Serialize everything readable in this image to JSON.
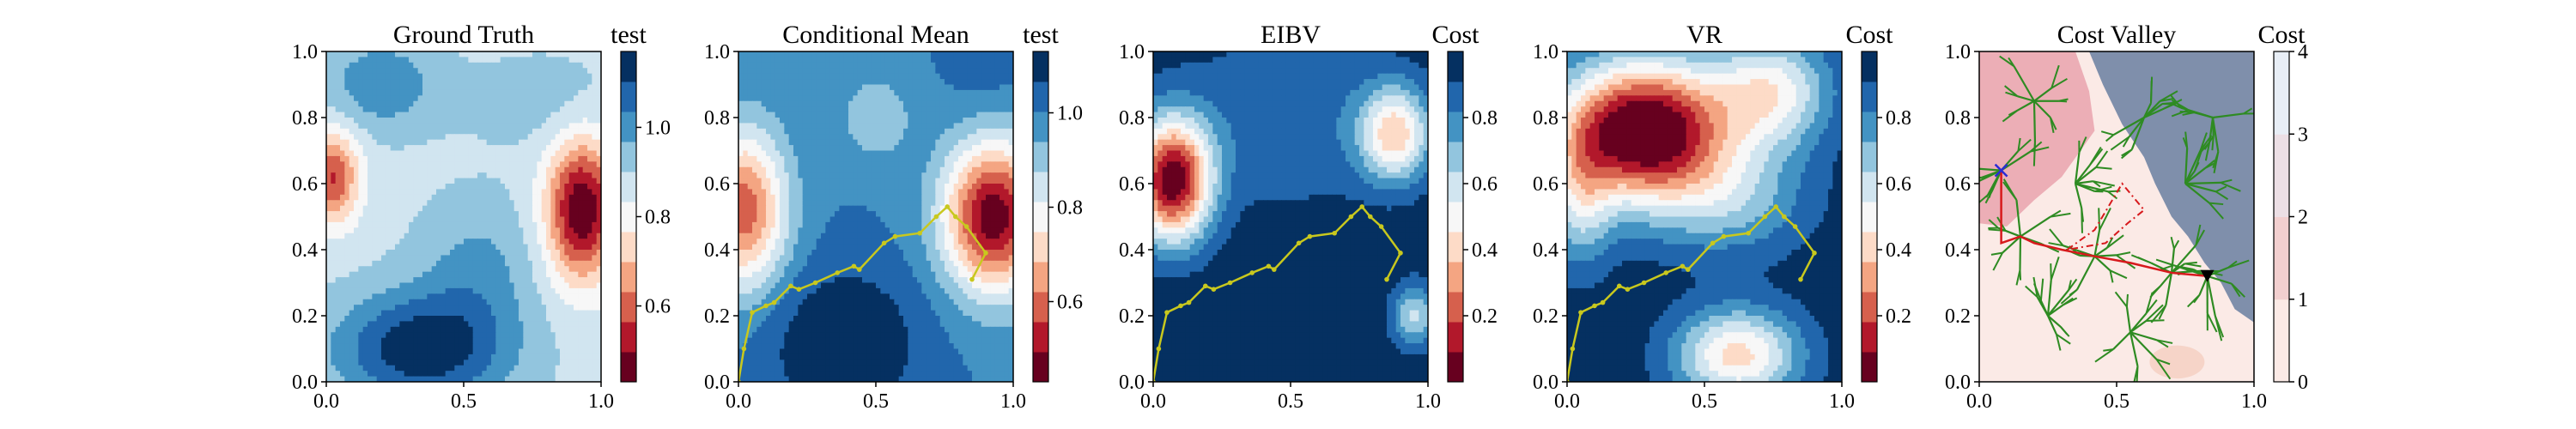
{
  "chart_data": [
    {
      "type": "heatmap",
      "title": "Ground Truth",
      "colorbar_label": "test",
      "xlim": [
        0.0,
        1.0
      ],
      "ylim": [
        0.0,
        1.0
      ],
      "xticks": [
        "0.0",
        "0.5",
        "1.0"
      ],
      "yticks": [
        "0.0",
        "0.2",
        "0.4",
        "0.6",
        "0.8",
        "1.0"
      ],
      "colorbar_range": [
        0.43,
        1.17
      ],
      "colorbar_ticks": [
        "0.6",
        "0.8",
        "1.0"
      ],
      "colorbar_tick_values": [
        0.6,
        0.8,
        1.0
      ],
      "colormap": [
        "#67001f",
        "#b2182b",
        "#d6604d",
        "#f4a582",
        "#fddbc7",
        "#f7f7f7",
        "#d1e5f0",
        "#92c5de",
        "#4393c3",
        "#2166ac",
        "#053061"
      ],
      "field": {
        "base": 0.88,
        "blobs": [
          {
            "x": 0.93,
            "y": 0.52,
            "sx": 0.09,
            "sy": 0.15,
            "amp": -0.45
          },
          {
            "x": 0.02,
            "y": 0.62,
            "sx": 0.07,
            "sy": 0.1,
            "amp": -0.32
          },
          {
            "x": 0.35,
            "y": 0.1,
            "sx": 0.22,
            "sy": 0.12,
            "amp": 0.28
          },
          {
            "x": 0.2,
            "y": 0.9,
            "sx": 0.15,
            "sy": 0.1,
            "amp": 0.14
          },
          {
            "x": 0.55,
            "y": 0.35,
            "sx": 0.15,
            "sy": 0.15,
            "amp": 0.1
          },
          {
            "x": 0.8,
            "y": 0.85,
            "sx": 0.2,
            "sy": 0.1,
            "amp": 0.06
          }
        ]
      }
    },
    {
      "type": "heatmap",
      "title": "Conditional Mean",
      "colorbar_label": "test",
      "xlim": [
        0.0,
        1.0
      ],
      "ylim": [
        0.0,
        1.0
      ],
      "xticks": [
        "0.0",
        "0.5",
        "1.0"
      ],
      "yticks": [
        "0.0",
        "0.2",
        "0.4",
        "0.6",
        "0.8",
        "1.0"
      ],
      "colorbar_range": [
        0.43,
        1.13
      ],
      "colorbar_ticks": [
        "0.6",
        "0.8",
        "1.0"
      ],
      "colorbar_tick_values": [
        0.6,
        0.8,
        1.0
      ],
      "colormap": [
        "#67001f",
        "#b2182b",
        "#d6604d",
        "#f4a582",
        "#fddbc7",
        "#f7f7f7",
        "#d1e5f0",
        "#92c5de",
        "#4393c3",
        "#2166ac",
        "#053061"
      ],
      "field": {
        "base": 1.0,
        "blobs": [
          {
            "x": 0.93,
            "y": 0.5,
            "sx": 0.13,
            "sy": 0.16,
            "amp": -0.55
          },
          {
            "x": 0.02,
            "y": 0.52,
            "sx": 0.11,
            "sy": 0.17,
            "amp": -0.42
          },
          {
            "x": 0.5,
            "y": 0.8,
            "sx": 0.09,
            "sy": 0.09,
            "amp": -0.12
          },
          {
            "x": 0.38,
            "y": 0.12,
            "sx": 0.2,
            "sy": 0.16,
            "amp": 0.14
          },
          {
            "x": 0.9,
            "y": 0.95,
            "sx": 0.1,
            "sy": 0.1,
            "amp": 0.04
          }
        ]
      },
      "path": {
        "color": "#c8c81e",
        "x": [
          0.0,
          0.02,
          0.05,
          0.1,
          0.13,
          0.19,
          0.22,
          0.28,
          0.36,
          0.42,
          0.44,
          0.53,
          0.57,
          0.66,
          0.72,
          0.76,
          0.79,
          0.83,
          0.9,
          0.85
        ],
        "y": [
          0.0,
          0.1,
          0.21,
          0.23,
          0.24,
          0.29,
          0.28,
          0.3,
          0.33,
          0.35,
          0.34,
          0.42,
          0.44,
          0.45,
          0.5,
          0.53,
          0.5,
          0.47,
          0.39,
          0.31
        ]
      }
    },
    {
      "type": "heatmap",
      "title": "EIBV",
      "colorbar_label": "Cost",
      "xlim": [
        0.0,
        1.0
      ],
      "ylim": [
        0.0,
        1.0
      ],
      "xticks": [
        "0.0",
        "0.5",
        "1.0"
      ],
      "yticks": [
        "0.0",
        "0.2",
        "0.4",
        "0.6",
        "0.8",
        "1.0"
      ],
      "colorbar_range": [
        0.0,
        1.0
      ],
      "colorbar_ticks": [
        "0.2",
        "0.4",
        "0.6",
        "0.8"
      ],
      "colorbar_tick_values": [
        0.2,
        0.4,
        0.6,
        0.8
      ],
      "colormap": [
        "#67001f",
        "#b2182b",
        "#d6604d",
        "#f4a582",
        "#fddbc7",
        "#f7f7f7",
        "#d1e5f0",
        "#92c5de",
        "#4393c3",
        "#2166ac",
        "#053061"
      ],
      "field": {
        "base": 0.98,
        "blobs": [
          {
            "x": 0.07,
            "y": 0.61,
            "sx": 0.1,
            "sy": 0.13,
            "amp": -0.95
          },
          {
            "x": 0.88,
            "y": 0.75,
            "sx": 0.09,
            "sy": 0.1,
            "amp": -0.55
          },
          {
            "x": 0.95,
            "y": 0.2,
            "sx": 0.06,
            "sy": 0.07,
            "amp": -0.35
          },
          {
            "x": 0.5,
            "y": 0.8,
            "sx": 0.3,
            "sy": 0.2,
            "amp": -0.15
          }
        ]
      },
      "path": {
        "color": "#c8c81e",
        "x": [
          0.0,
          0.02,
          0.05,
          0.1,
          0.13,
          0.19,
          0.22,
          0.28,
          0.36,
          0.42,
          0.44,
          0.53,
          0.57,
          0.66,
          0.72,
          0.76,
          0.79,
          0.83,
          0.9,
          0.85
        ],
        "y": [
          0.0,
          0.1,
          0.21,
          0.23,
          0.24,
          0.29,
          0.28,
          0.3,
          0.33,
          0.35,
          0.34,
          0.42,
          0.44,
          0.45,
          0.5,
          0.53,
          0.5,
          0.47,
          0.39,
          0.31
        ]
      }
    },
    {
      "type": "heatmap",
      "title": "VR",
      "colorbar_label": "Cost",
      "xlim": [
        0.0,
        1.0
      ],
      "ylim": [
        0.0,
        1.0
      ],
      "xticks": [
        "0.0",
        "0.5",
        "1.0"
      ],
      "yticks": [
        "0.0",
        "0.2",
        "0.4",
        "0.6",
        "0.8",
        "1.0"
      ],
      "colorbar_range": [
        0.0,
        1.0
      ],
      "colorbar_ticks": [
        "0.2",
        "0.4",
        "0.6",
        "0.8"
      ],
      "colorbar_tick_values": [
        0.2,
        0.4,
        0.6,
        0.8
      ],
      "colormap": [
        "#67001f",
        "#b2182b",
        "#d6604d",
        "#f4a582",
        "#fddbc7",
        "#f7f7f7",
        "#d1e5f0",
        "#92c5de",
        "#4393c3",
        "#2166ac",
        "#053061"
      ],
      "field": {
        "base": 0.97,
        "blobs": [
          {
            "x": 0.28,
            "y": 0.76,
            "sx": 0.22,
            "sy": 0.15,
            "amp": -1.05
          },
          {
            "x": 0.75,
            "y": 0.88,
            "sx": 0.15,
            "sy": 0.12,
            "amp": -0.45
          },
          {
            "x": 0.05,
            "y": 0.55,
            "sx": 0.08,
            "sy": 0.15,
            "amp": -0.3
          },
          {
            "x": 0.62,
            "y": 0.08,
            "sx": 0.16,
            "sy": 0.1,
            "amp": -0.55
          },
          {
            "x": 0.6,
            "y": 0.55,
            "sx": 0.2,
            "sy": 0.12,
            "amp": -0.25
          }
        ]
      },
      "path": {
        "color": "#c8c81e",
        "x": [
          0.0,
          0.02,
          0.05,
          0.1,
          0.13,
          0.19,
          0.22,
          0.28,
          0.36,
          0.42,
          0.44,
          0.53,
          0.57,
          0.66,
          0.72,
          0.76,
          0.79,
          0.83,
          0.9,
          0.85
        ],
        "y": [
          0.0,
          0.1,
          0.21,
          0.23,
          0.24,
          0.29,
          0.28,
          0.3,
          0.33,
          0.35,
          0.34,
          0.42,
          0.44,
          0.45,
          0.5,
          0.53,
          0.5,
          0.47,
          0.39,
          0.31
        ]
      }
    },
    {
      "type": "heatmap",
      "title": "Cost Valley",
      "colorbar_label": "Cost",
      "xlim": [
        0.0,
        1.0
      ],
      "ylim": [
        0.0,
        1.0
      ],
      "xticks": [
        "0.0",
        "0.5",
        "1.0"
      ],
      "yticks": [
        "0.0",
        "0.2",
        "0.4",
        "0.6",
        "0.8",
        "1.0"
      ],
      "colorbar_range": [
        0,
        4
      ],
      "colorbar_ticks": [
        "0",
        "1",
        "2",
        "3",
        "4"
      ],
      "colorbar_tick_values": [
        0,
        1,
        2,
        3,
        4
      ],
      "colormap": [
        "#fbeae6",
        "#f2cfcf",
        "#ecdfe5",
        "#e8eef6"
      ],
      "regions": {
        "obstacle_color": "#7f8fab",
        "obstacle_polygon": [
          [
            0.4,
            1.0
          ],
          [
            1.0,
            1.0
          ],
          [
            1.0,
            0.18
          ],
          [
            0.93,
            0.22
          ],
          [
            0.88,
            0.3
          ],
          [
            0.82,
            0.36
          ],
          [
            0.76,
            0.44
          ],
          [
            0.7,
            0.5
          ],
          [
            0.64,
            0.6
          ],
          [
            0.6,
            0.68
          ],
          [
            0.52,
            0.78
          ],
          [
            0.45,
            0.9
          ]
        ],
        "warm_color": "#ecaeb6",
        "warm_polygon": [
          [
            0.0,
            0.48
          ],
          [
            0.0,
            1.0
          ],
          [
            0.35,
            1.0
          ],
          [
            0.4,
            0.88
          ],
          [
            0.42,
            0.76
          ],
          [
            0.3,
            0.62
          ],
          [
            0.2,
            0.55
          ],
          [
            0.1,
            0.47
          ]
        ],
        "bottom_patch_color": "#f6d4c8",
        "bottom_patch": {
          "x": 0.72,
          "y": 0.06,
          "rx": 0.1,
          "ry": 0.05
        }
      },
      "start_marker": {
        "x": 0.83,
        "y": 0.32
      },
      "target_marker": {
        "x": 0.08,
        "y": 0.64
      },
      "tree_color": "#2e8b22",
      "route_color": "#d7191c",
      "route": {
        "x": [
          0.83,
          0.7,
          0.55,
          0.42,
          0.3,
          0.2,
          0.15,
          0.08,
          0.08
        ],
        "y": [
          0.32,
          0.33,
          0.36,
          0.38,
          0.4,
          0.42,
          0.44,
          0.42,
          0.64
        ]
      },
      "dashed_route": {
        "x": [
          0.32,
          0.42,
          0.52,
          0.6,
          0.54,
          0.46,
          0.32
        ],
        "y": [
          0.4,
          0.46,
          0.6,
          0.52,
          0.48,
          0.42,
          0.4
        ]
      }
    }
  ]
}
